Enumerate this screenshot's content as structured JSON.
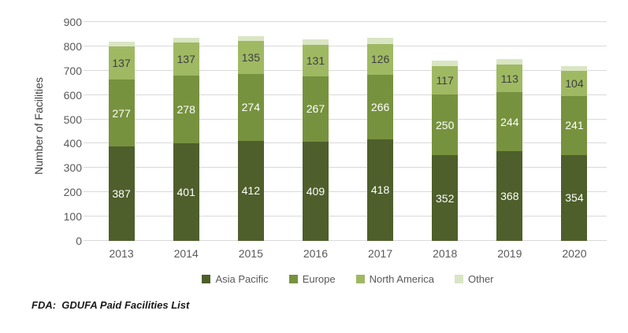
{
  "chart_data": {
    "type": "bar",
    "stacked": true,
    "title": "",
    "xlabel": "",
    "ylabel": "Number of Facilities",
    "ylim": [
      0,
      900
    ],
    "ytick_interval": 100,
    "yticks": [
      "0",
      "100",
      "200",
      "300",
      "400",
      "500",
      "600",
      "700",
      "800",
      "900"
    ],
    "grid": true,
    "legend_position": "bottom",
    "categories": [
      "2013",
      "2014",
      "2015",
      "2016",
      "2017",
      "2018",
      "2019",
      "2020"
    ],
    "series": [
      {
        "name": "Asia Pacific",
        "color": "#4e5f2b",
        "label_color": "#ffffff",
        "show_labels": true,
        "values": [
          387,
          401,
          412,
          409,
          418,
          352,
          368,
          354
        ]
      },
      {
        "name": "Europe",
        "color": "#77923e",
        "label_color": "#ffffff",
        "show_labels": true,
        "values": [
          277,
          278,
          274,
          267,
          266,
          250,
          244,
          241
        ]
      },
      {
        "name": "North America",
        "color": "#9fb963",
        "label_color": "#3f3f3f",
        "show_labels": true,
        "values": [
          137,
          137,
          135,
          131,
          126,
          117,
          113,
          104
        ]
      },
      {
        "name": "Other",
        "color": "#d9e5c3",
        "label_color": "#3f3f3f",
        "show_labels": false,
        "values_estimated_from_gridlines": true,
        "values": [
          19,
          20,
          22,
          23,
          25,
          21,
          23,
          21
        ]
      }
    ]
  },
  "colors": {
    "gridline": "#d9d9d9",
    "axis_text": "#595959",
    "axis_title_text": "#404040"
  },
  "source_note": "FDA:  GDUFA Paid Facilities List"
}
